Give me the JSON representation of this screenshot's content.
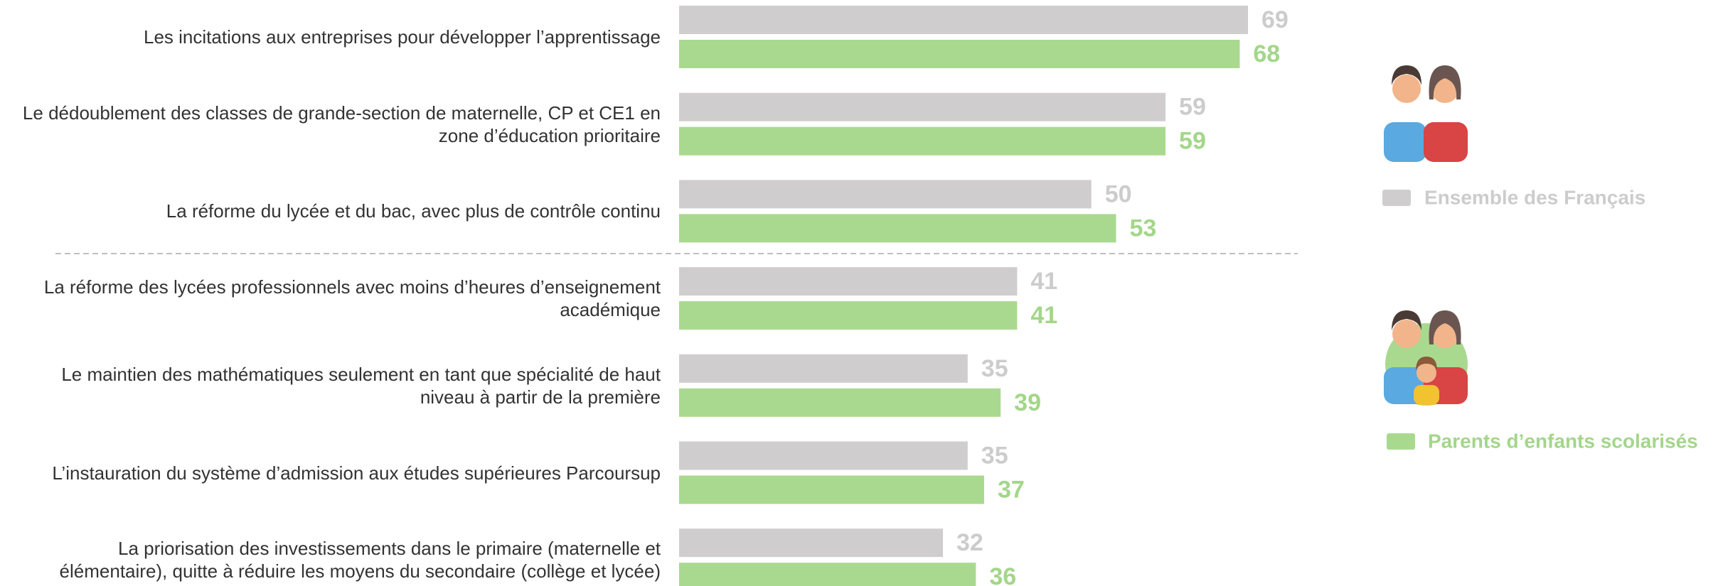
{
  "chart_data": {
    "type": "bar",
    "orientation": "horizontal",
    "categories": [
      "Les incitations aux entreprises pour développer l’apprentissage",
      "Le dédoublement des classes de grande-section de maternelle, CP et CE1 en zone d’éducation prioritaire",
      "La réforme du lycée et du bac, avec plus de contrôle continu",
      "La réforme des lycées professionnels avec moins d’heures d’enseignement académique",
      "Le maintien des mathématiques seulement en tant que spécialité de haut niveau à partir de la première",
      "L’instauration du système d’admission aux études supérieures Parcoursup",
      "La priorisation des investissements dans le primaire (maternelle et élémentaire), quitte à réduire les moyens du secondaire (collège et lycée)"
    ],
    "series": [
      {
        "name": "Ensemble des Français",
        "color": "#cfcdcd",
        "label_color": "#cccccc",
        "values": [
          69,
          59,
          50,
          41,
          35,
          35,
          32
        ]
      },
      {
        "name": "Parents d’enfants scolarisés",
        "color": "#a9d98f",
        "label_color": "#a3d68a",
        "values": [
          68,
          59,
          53,
          41,
          39,
          37,
          36
        ]
      }
    ]
  }
}
